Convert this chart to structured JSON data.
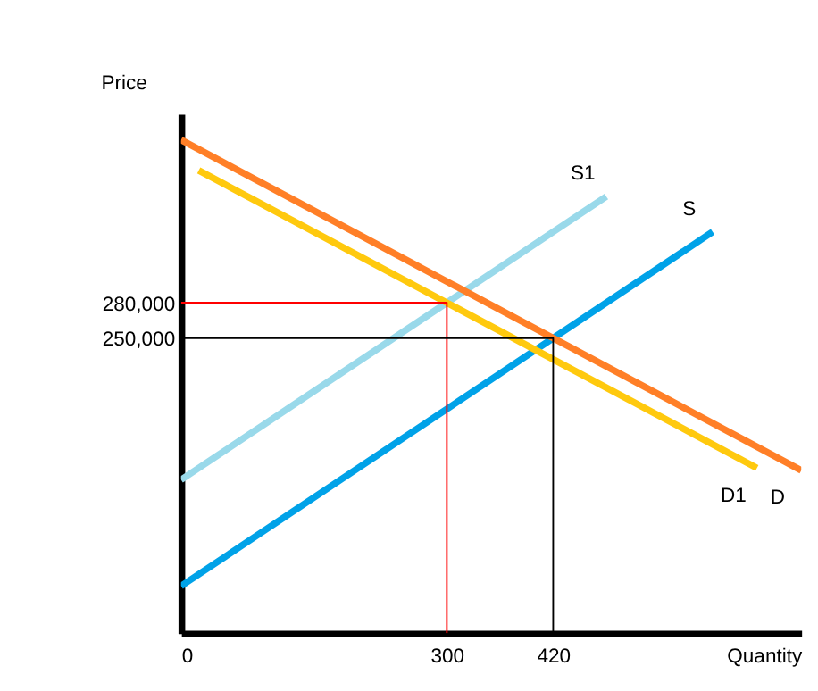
{
  "chart_data": {
    "type": "line",
    "xlabel": "Quantity",
    "ylabel": "Price",
    "xlim": [
      0,
      700
    ],
    "ylim": [
      0,
      440000
    ],
    "xticks": [
      0,
      300,
      420
    ],
    "yticks": [
      {
        "value": 250000,
        "label": "250,000"
      },
      {
        "value": 280000,
        "label": "280,000"
      }
    ],
    "grid": false,
    "marker": "none",
    "line_style": "solid",
    "series": [
      {
        "name": "S1",
        "color": "#99d9ea",
        "x": [
          0,
          480
        ],
        "values": [
          130000,
          370000
        ]
      },
      {
        "name": "S",
        "color": "#00a2e8",
        "x": [
          0,
          600
        ],
        "values": [
          40000,
          340000
        ]
      },
      {
        "name": "D",
        "color": "#ff7f27",
        "x": [
          0,
          700
        ],
        "values": [
          418000,
          138000
        ]
      },
      {
        "name": "D1",
        "color": "#ffc90e",
        "x": [
          20,
          650
        ],
        "values": [
          392000,
          140000
        ]
      },
      {
        "color": "#ff0000",
        "x": [
          0,
          300,
          300
        ],
        "values": [
          280000,
          280000,
          0
        ]
      },
      {
        "color": "#000000",
        "x": [
          0,
          420,
          420
        ],
        "values": [
          250000,
          250000,
          0
        ]
      }
    ]
  }
}
